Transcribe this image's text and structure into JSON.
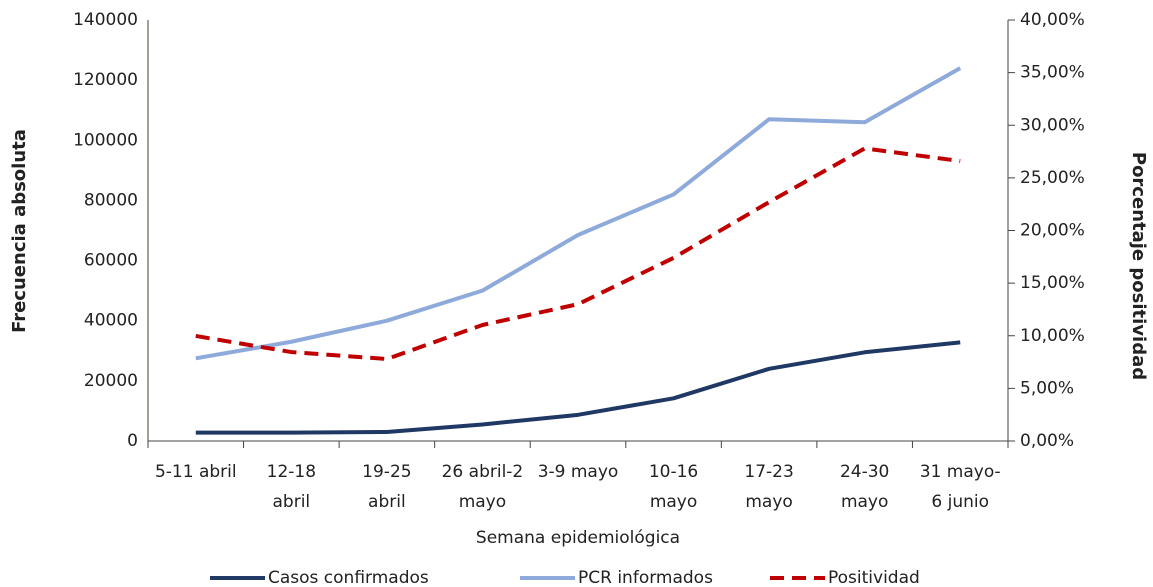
{
  "chart_data": {
    "type": "line",
    "x_label": "Semana epidemiológica",
    "y_label": "Frecuencia absoluta",
    "y2_label": "Porcentaje positividad",
    "categories": [
      "5-11 abril",
      "12-18\nabril",
      "19-25\nabril",
      "26 abril-2\nmayo",
      "3-9 mayo",
      "10-16\nmayo",
      "17-23\nmayo",
      "24-30\nmayo",
      "31 mayo-\n6 junio"
    ],
    "series": [
      {
        "name": "Casos confirmados",
        "color": "#1f3864",
        "dash": false,
        "values": [
          2800,
          2800,
          3000,
          5500,
          8700,
          14200,
          24000,
          29500,
          32800
        ]
      },
      {
        "name": "PCR informados",
        "color": "#8eaadb",
        "dash": false,
        "values": [
          27500,
          33000,
          40000,
          50000,
          68500,
          82000,
          107000,
          106000,
          124000
        ]
      },
      {
        "name": "Positividad",
        "color": "#c00000",
        "dash": true,
        "axis": "y2",
        "values": [
          9.98,
          8.45,
          7.79,
          11.02,
          13.0,
          17.4,
          22.7,
          27.8,
          26.6
        ]
      }
    ],
    "ylim": [
      0,
      140000
    ],
    "yticks": [
      0,
      20000,
      40000,
      60000,
      80000,
      100000,
      120000,
      140000
    ],
    "y2lim": [
      0,
      40
    ],
    "y2ticks": [
      {
        "value": 0,
        "label": "0,00%"
      },
      {
        "value": 5,
        "label": "5,00%"
      },
      {
        "value": 10,
        "label": "10,00%"
      },
      {
        "value": 15,
        "label": "15,00%"
      },
      {
        "value": 20,
        "label": "20,00%"
      },
      {
        "value": 25,
        "label": "25,00%"
      },
      {
        "value": 30,
        "label": "30,00%"
      },
      {
        "value": 35,
        "label": "35,00%"
      },
      {
        "value": 40,
        "label": "40,00%"
      }
    ],
    "legend": "bottom"
  }
}
